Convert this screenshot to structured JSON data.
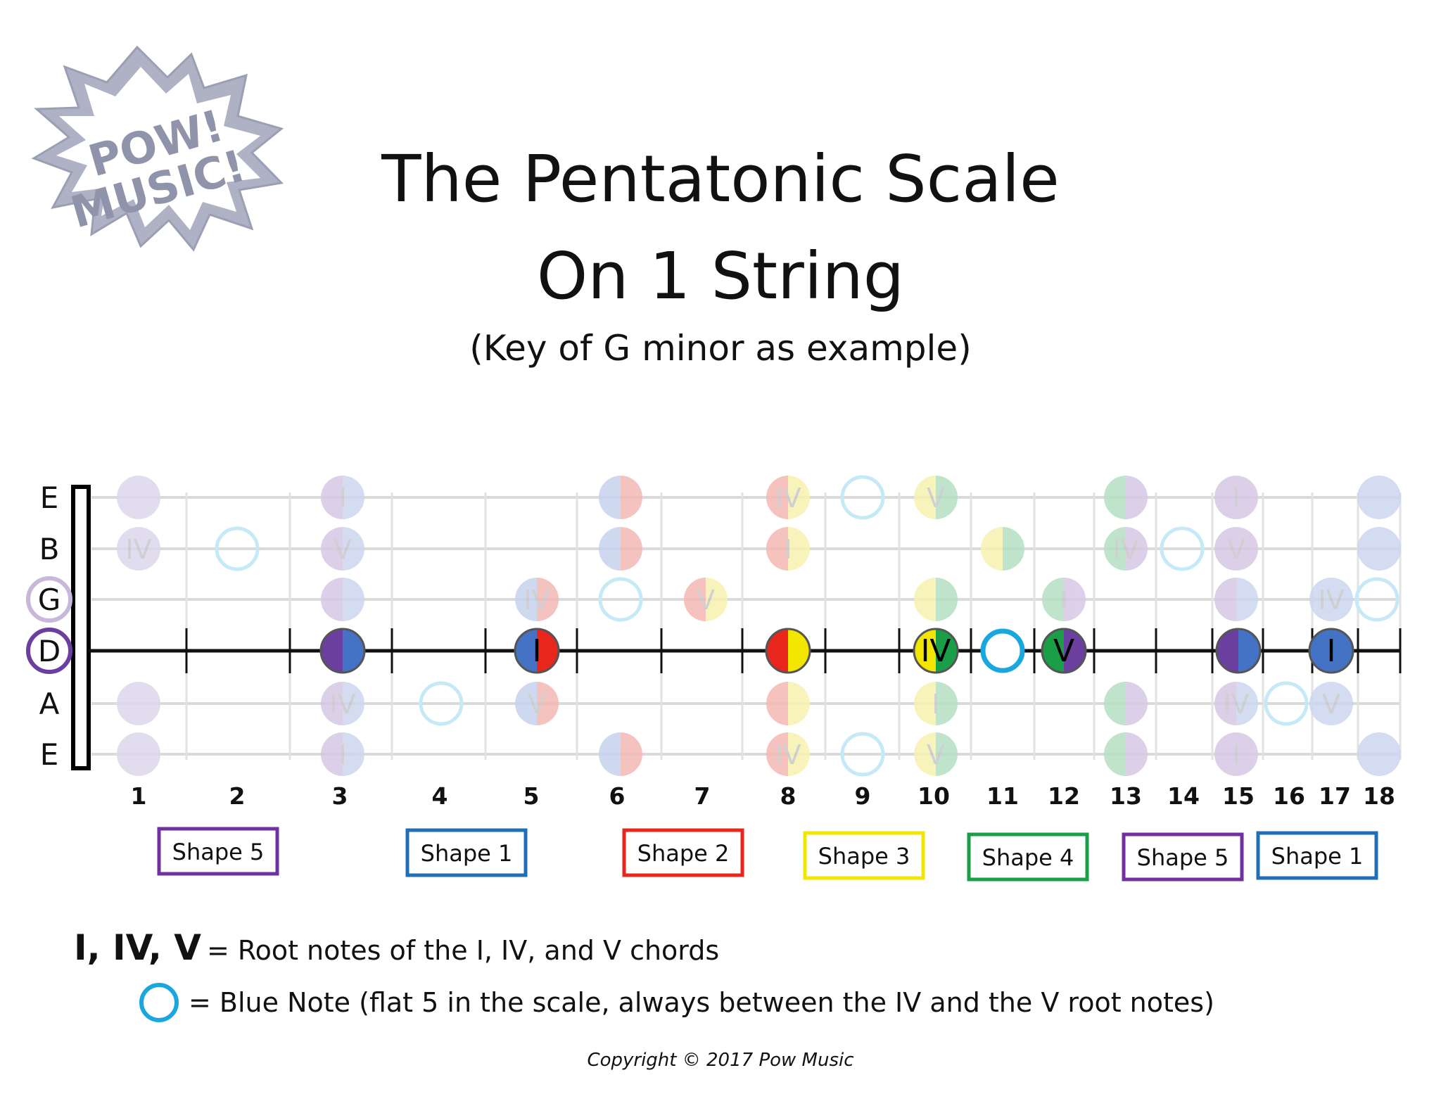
{
  "logo": {
    "line1": "POW!",
    "line2": "MUSIC!"
  },
  "title": {
    "line1": "The Pentatonic Scale",
    "line2": "On 1 String",
    "subtitle": "(Key of G minor as example)"
  },
  "strings": [
    {
      "name": "E",
      "ring": ""
    },
    {
      "name": "B",
      "ring": ""
    },
    {
      "name": "G",
      "ring": "#c9b6db"
    },
    {
      "name": "D",
      "ring": "#6b3fa0"
    },
    {
      "name": "A",
      "ring": ""
    },
    {
      "name": "E",
      "ring": ""
    }
  ],
  "fret_numbers": [
    "1",
    "2",
    "3",
    "4",
    "5",
    "6",
    "7",
    "8",
    "9",
    "10",
    "11",
    "12",
    "13",
    "14",
    "15",
    "16",
    "17",
    "18"
  ],
  "focus_notes": [
    {
      "fret": "3",
      "left": "#6b3fa0",
      "right": "#4472c4",
      "label": ""
    },
    {
      "fret": "5",
      "left": "#4472c4",
      "right": "#e8261c",
      "label": "I"
    },
    {
      "fret": "8",
      "left": "#e8261c",
      "right": "#f2e600",
      "label": ""
    },
    {
      "fret": "10",
      "left": "#f2e600",
      "right": "#1a9e47",
      "label": "IV"
    },
    {
      "fret": "11",
      "left": "",
      "right": "",
      "label": "",
      "blue": true
    },
    {
      "fret": "12",
      "left": "#1a9e47",
      "right": "#6b3fa0",
      "label": "V"
    },
    {
      "fret": "15",
      "left": "#6b3fa0",
      "right": "#4472c4",
      "label": ""
    },
    {
      "fret": "17",
      "left": "#4472c4",
      "right": "#4472c4",
      "label": "I"
    }
  ],
  "faded_notes": [
    {
      "s": 0,
      "x": 197,
      "l": "#ddd8ec",
      "r": "#ddd8ec",
      "t": ""
    },
    {
      "s": 0,
      "x": 487,
      "l": "#d7c8e4",
      "r": "#ccd6ee",
      "t": "I"
    },
    {
      "s": 0,
      "x": 882,
      "l": "#c6d3ee",
      "r": "#f3b8b4",
      "t": ""
    },
    {
      "s": 0,
      "x": 1120,
      "l": "#f4b8b2",
      "r": "#f7f2b0",
      "t": "IV"
    },
    {
      "s": 0,
      "x": 1226,
      "ring": true
    },
    {
      "s": 0,
      "x": 1330,
      "l": "#f7f2b0",
      "r": "#b6e0c2",
      "t": "V"
    },
    {
      "s": 0,
      "x": 1600,
      "l": "#b6e0c2",
      "r": "#d7c8e4",
      "t": ""
    },
    {
      "s": 0,
      "x": 1757,
      "l": "#d7c8e4",
      "r": "#d7c8e4",
      "t": "I"
    },
    {
      "s": 0,
      "x": 1960,
      "l": "#ccd6ee",
      "r": "#ccd6ee",
      "t": ""
    },
    {
      "s": 1,
      "x": 197,
      "l": "#ddd8ec",
      "r": "#ddd8ec",
      "t": "IV"
    },
    {
      "s": 1,
      "x": 337,
      "ring": true
    },
    {
      "s": 1,
      "x": 487,
      "l": "#d7c8e4",
      "r": "#ccd6ee",
      "t": "V"
    },
    {
      "s": 1,
      "x": 882,
      "l": "#c6d3ee",
      "r": "#f3b8b4",
      "t": ""
    },
    {
      "s": 1,
      "x": 1120,
      "l": "#f4b8b2",
      "r": "#f7f2b0",
      "t": "I"
    },
    {
      "s": 1,
      "x": 1425,
      "l": "#f7f2b0",
      "r": "#b6e0c2",
      "t": ""
    },
    {
      "s": 1,
      "x": 1600,
      "l": "#b6e0c2",
      "r": "#d7c8e4",
      "t": "IV"
    },
    {
      "s": 1,
      "x": 1680,
      "ring": true
    },
    {
      "s": 1,
      "x": 1757,
      "l": "#d7c8e4",
      "r": "#d7c8e4",
      "t": "V"
    },
    {
      "s": 1,
      "x": 1960,
      "l": "#ccd6ee",
      "r": "#ccd6ee",
      "t": ""
    },
    {
      "s": 2,
      "x": 487,
      "l": "#d7c8e4",
      "r": "#ccd6ee",
      "t": ""
    },
    {
      "s": 2,
      "x": 763,
      "l": "#c6d3ee",
      "r": "#f3b8b4",
      "t": "IV"
    },
    {
      "s": 2,
      "x": 882,
      "ring": true
    },
    {
      "s": 2,
      "x": 1003,
      "l": "#f4b8b2",
      "r": "#f7f2b0",
      "t": "V"
    },
    {
      "s": 2,
      "x": 1330,
      "l": "#f7f2b0",
      "r": "#b6e0c2",
      "t": ""
    },
    {
      "s": 2,
      "x": 1512,
      "l": "#b6e0c2",
      "r": "#d7c8e4",
      "t": "I"
    },
    {
      "s": 2,
      "x": 1757,
      "l": "#d7c8e4",
      "r": "#ccd6ee",
      "t": ""
    },
    {
      "s": 2,
      "x": 1892,
      "l": "#ccd6ee",
      "r": "#ccd6ee",
      "t": "IV"
    },
    {
      "s": 2,
      "x": 1957,
      "ring": true
    },
    {
      "s": 4,
      "x": 197,
      "l": "#ddd8ec",
      "r": "#ddd8ec",
      "t": ""
    },
    {
      "s": 4,
      "x": 487,
      "l": "#d7c8e4",
      "r": "#ccd6ee",
      "t": "IV"
    },
    {
      "s": 4,
      "x": 627,
      "ring": true
    },
    {
      "s": 4,
      "x": 763,
      "l": "#c6d3ee",
      "r": "#f3b8b4",
      "t": "V"
    },
    {
      "s": 4,
      "x": 1120,
      "l": "#f4b8b2",
      "r": "#f7f2b0",
      "t": ""
    },
    {
      "s": 4,
      "x": 1330,
      "l": "#f7f2b0",
      "r": "#b6e0c2",
      "t": "I"
    },
    {
      "s": 4,
      "x": 1600,
      "l": "#b6e0c2",
      "r": "#d7c8e4",
      "t": ""
    },
    {
      "s": 4,
      "x": 1757,
      "l": "#d7c8e4",
      "r": "#ccd6ee",
      "t": "IV"
    },
    {
      "s": 4,
      "x": 1828,
      "ring": true
    },
    {
      "s": 4,
      "x": 1892,
      "l": "#ccd6ee",
      "r": "#ccd6ee",
      "t": "V"
    },
    {
      "s": 5,
      "x": 197,
      "l": "#ddd8ec",
      "r": "#ddd8ec",
      "t": ""
    },
    {
      "s": 5,
      "x": 487,
      "l": "#d7c8e4",
      "r": "#ccd6ee",
      "t": "I"
    },
    {
      "s": 5,
      "x": 882,
      "l": "#c6d3ee",
      "r": "#f3b8b4",
      "t": ""
    },
    {
      "s": 5,
      "x": 1120,
      "l": "#f4b8b2",
      "r": "#f7f2b0",
      "t": "IV"
    },
    {
      "s": 5,
      "x": 1226,
      "ring": true
    },
    {
      "s": 5,
      "x": 1330,
      "l": "#f7f2b0",
      "r": "#b6e0c2",
      "t": "V"
    },
    {
      "s": 5,
      "x": 1600,
      "l": "#b6e0c2",
      "r": "#d7c8e4",
      "t": ""
    },
    {
      "s": 5,
      "x": 1757,
      "l": "#d7c8e4",
      "r": "#d7c8e4",
      "t": "I"
    },
    {
      "s": 5,
      "x": 1960,
      "l": "#ccd6ee",
      "r": "#ccd6ee",
      "t": ""
    }
  ],
  "shapes": [
    {
      "label": "Shape 5",
      "color": "#7030a0"
    },
    {
      "label": "Shape 1",
      "color": "#1f6fb8"
    },
    {
      "label": "Shape 2",
      "color": "#e8261c"
    },
    {
      "label": "Shape 3",
      "color": "#f2e600"
    },
    {
      "label": "Shape 4",
      "color": "#1a9e47"
    },
    {
      "label": "Shape 5",
      "color": "#7030a0"
    },
    {
      "label": "Shape 1",
      "color": "#1f6fb8"
    }
  ],
  "legend": {
    "chords_symbol": "I, IV, V",
    "chords_text": "= Root notes of the I, IV, and V chords",
    "blue_text": "= Blue Note (flat 5 in the scale, always between the IV and the V root notes)",
    "blue_color": "#1aa7e0"
  },
  "copyright": "Copyright © 2017 Pow Music"
}
